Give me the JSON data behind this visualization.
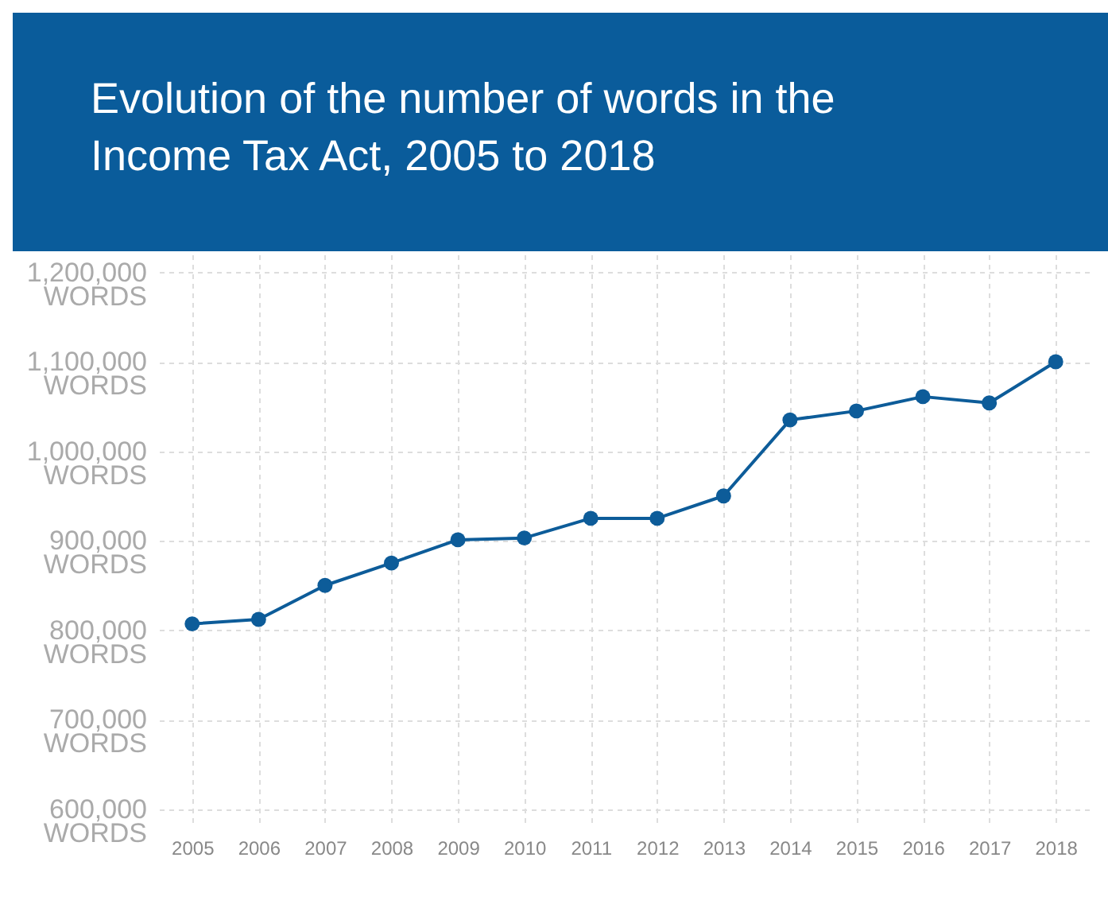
{
  "chart_data": {
    "type": "line",
    "title": "Evolution of the number of words in the Income Tax Act, 2005 to 2018",
    "categories": [
      "2005",
      "2006",
      "2007",
      "2008",
      "2009",
      "2010",
      "2011",
      "2012",
      "2013",
      "2014",
      "2015",
      "2016",
      "2017",
      "2018"
    ],
    "series": [
      {
        "color": "#0d5c99",
        "values": [
          807000,
          812000,
          850000,
          875000,
          901000,
          903000,
          925000,
          925000,
          950000,
          1035000,
          1045000,
          1061000,
          1054000,
          1100000
        ]
      }
    ],
    "ylim": [
      580000,
      1220000
    ],
    "yticks": [
      {
        "value": 600000,
        "label": "600,000\nWORDS"
      },
      {
        "value": 700000,
        "label": "700,000\nWORDS"
      },
      {
        "value": 800000,
        "label": "800,000\nWORDS"
      },
      {
        "value": 900000,
        "label": "900,000\nWORDS"
      },
      {
        "value": 1000000,
        "label": "1,000,000\nWORDS"
      },
      {
        "value": 1100000,
        "label": "1,100,000\nWORDS"
      },
      {
        "value": 1200000,
        "label": "1,200,000\nWORDS"
      }
    ],
    "grid": true,
    "marker": "circle",
    "line_style": "solid"
  }
}
